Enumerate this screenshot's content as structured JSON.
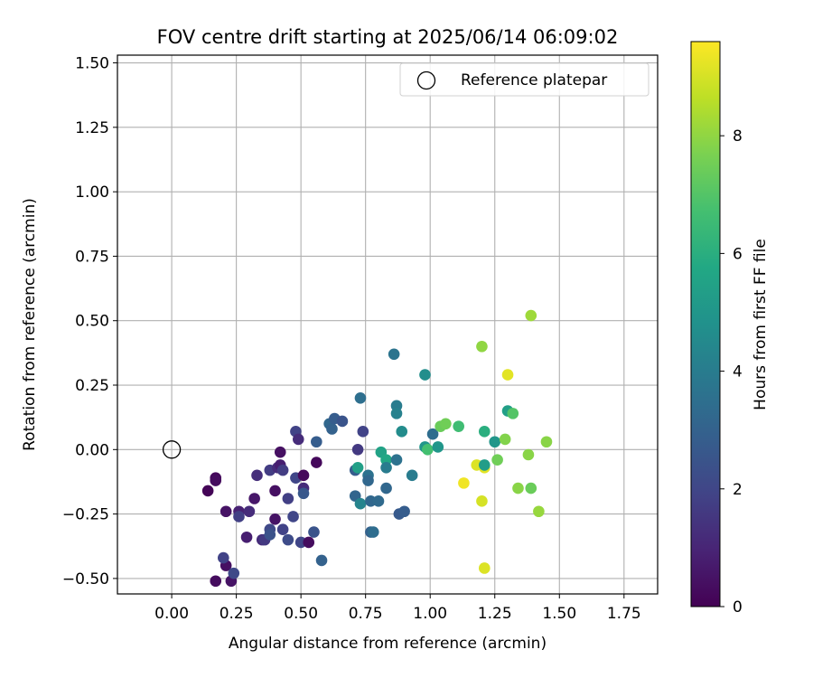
{
  "chart_data": {
    "type": "scatter",
    "title": "FOV centre drift starting at 2025/06/14 06:09:02",
    "xlabel": "Angular distance from reference (arcmin)",
    "ylabel": "Rotation from reference (arcmin)",
    "xlim": [
      -0.21,
      1.88
    ],
    "ylim": [
      -0.56,
      1.53
    ],
    "xticks": [
      "0.00",
      "0.25",
      "0.50",
      "0.75",
      "1.00",
      "1.25",
      "1.50",
      "1.75"
    ],
    "xtick_values": [
      0,
      0.25,
      0.5,
      0.75,
      1.0,
      1.25,
      1.5,
      1.75
    ],
    "yticks": [
      "−0.50",
      "−0.25",
      "0.00",
      "0.25",
      "0.50",
      "0.75",
      "1.00",
      "1.25",
      "1.50"
    ],
    "ytick_values": [
      -0.5,
      -0.25,
      0,
      0.25,
      0.5,
      0.75,
      1.0,
      1.25,
      1.5
    ],
    "grid": true,
    "colormap": "viridis",
    "colorbar": {
      "label": "Hours from first FF file",
      "min": 0,
      "max": 9.6,
      "ticks": [
        "0",
        "2",
        "4",
        "6",
        "8"
      ],
      "tick_values": [
        0,
        2,
        4,
        6,
        8
      ]
    },
    "legend": {
      "position": "top-right",
      "entries": [
        {
          "label": "Reference platepar",
          "marker": "open-circle"
        }
      ]
    },
    "reference_point": {
      "x": 0.0,
      "y": 0.0
    },
    "points": [
      {
        "x": 0.14,
        "y": -0.16,
        "c": 0.1
      },
      {
        "x": 0.17,
        "y": -0.11,
        "c": 0.2
      },
      {
        "x": 0.17,
        "y": -0.12,
        "c": 0.3
      },
      {
        "x": 0.17,
        "y": -0.51,
        "c": 0.3
      },
      {
        "x": 0.21,
        "y": -0.45,
        "c": 0.4
      },
      {
        "x": 0.23,
        "y": -0.51,
        "c": 0.5
      },
      {
        "x": 0.21,
        "y": -0.24,
        "c": 0.5
      },
      {
        "x": 0.26,
        "y": -0.24,
        "c": 0.9
      },
      {
        "x": 0.26,
        "y": -0.26,
        "c": 1.8
      },
      {
        "x": 0.24,
        "y": -0.48,
        "c": 2.1
      },
      {
        "x": 0.2,
        "y": -0.42,
        "c": 1.9
      },
      {
        "x": 0.29,
        "y": -0.34,
        "c": 0.8
      },
      {
        "x": 0.3,
        "y": -0.24,
        "c": 1.2
      },
      {
        "x": 0.32,
        "y": -0.19,
        "c": 0.6
      },
      {
        "x": 0.33,
        "y": -0.1,
        "c": 1.3
      },
      {
        "x": 0.35,
        "y": -0.35,
        "c": 1.2
      },
      {
        "x": 0.36,
        "y": -0.35,
        "c": 1.6
      },
      {
        "x": 0.38,
        "y": -0.31,
        "c": 2.1
      },
      {
        "x": 0.38,
        "y": -0.33,
        "c": 2.4
      },
      {
        "x": 0.38,
        "y": -0.08,
        "c": 1.7
      },
      {
        "x": 0.4,
        "y": -0.27,
        "c": 0.5
      },
      {
        "x": 0.4,
        "y": -0.16,
        "c": 0.4
      },
      {
        "x": 0.41,
        "y": -0.07,
        "c": 1.2
      },
      {
        "x": 0.42,
        "y": -0.01,
        "c": 0.4
      },
      {
        "x": 0.42,
        "y": -0.06,
        "c": 0.8
      },
      {
        "x": 0.43,
        "y": -0.08,
        "c": 1.7
      },
      {
        "x": 0.43,
        "y": -0.31,
        "c": 1.9
      },
      {
        "x": 0.45,
        "y": -0.19,
        "c": 1.8
      },
      {
        "x": 0.45,
        "y": -0.35,
        "c": 2.2
      },
      {
        "x": 0.47,
        "y": -0.26,
        "c": 2.0
      },
      {
        "x": 0.48,
        "y": -0.11,
        "c": 2.0
      },
      {
        "x": 0.48,
        "y": 0.07,
        "c": 1.9
      },
      {
        "x": 0.49,
        "y": 0.04,
        "c": 1.2
      },
      {
        "x": 0.5,
        "y": -0.36,
        "c": 2.0
      },
      {
        "x": 0.51,
        "y": -0.1,
        "c": 0.2
      },
      {
        "x": 0.51,
        "y": -0.15,
        "c": 1.2
      },
      {
        "x": 0.51,
        "y": -0.17,
        "c": 2.6
      },
      {
        "x": 0.53,
        "y": -0.36,
        "c": 0.3
      },
      {
        "x": 0.55,
        "y": -0.32,
        "c": 2.5
      },
      {
        "x": 0.56,
        "y": 0.03,
        "c": 2.8
      },
      {
        "x": 0.56,
        "y": -0.05,
        "c": 0.2
      },
      {
        "x": 0.58,
        "y": -0.43,
        "c": 3.0
      },
      {
        "x": 0.61,
        "y": 0.1,
        "c": 3.2
      },
      {
        "x": 0.62,
        "y": 0.08,
        "c": 3.0
      },
      {
        "x": 0.63,
        "y": 0.12,
        "c": 2.8
      },
      {
        "x": 0.66,
        "y": 0.11,
        "c": 2.5
      },
      {
        "x": 0.71,
        "y": -0.08,
        "c": 2.8
      },
      {
        "x": 0.71,
        "y": -0.18,
        "c": 3.1
      },
      {
        "x": 0.72,
        "y": 0.0,
        "c": 1.6
      },
      {
        "x": 0.73,
        "y": 0.2,
        "c": 3.5
      },
      {
        "x": 0.74,
        "y": 0.07,
        "c": 1.9
      },
      {
        "x": 0.72,
        "y": -0.07,
        "c": 5.4
      },
      {
        "x": 0.73,
        "y": -0.21,
        "c": 4.3
      },
      {
        "x": 0.76,
        "y": -0.1,
        "c": 3.6
      },
      {
        "x": 0.76,
        "y": -0.12,
        "c": 3.2
      },
      {
        "x": 0.77,
        "y": -0.2,
        "c": 3.2
      },
      {
        "x": 0.77,
        "y": -0.32,
        "c": 3.0
      },
      {
        "x": 0.78,
        "y": -0.32,
        "c": 3.4
      },
      {
        "x": 0.8,
        "y": -0.2,
        "c": 3.3
      },
      {
        "x": 0.81,
        "y": -0.01,
        "c": 5.5
      },
      {
        "x": 0.83,
        "y": -0.04,
        "c": 5.7
      },
      {
        "x": 0.83,
        "y": -0.07,
        "c": 4.0
      },
      {
        "x": 0.83,
        "y": -0.15,
        "c": 3.2
      },
      {
        "x": 0.86,
        "y": 0.37,
        "c": 3.7
      },
      {
        "x": 0.87,
        "y": 0.17,
        "c": 4.0
      },
      {
        "x": 0.87,
        "y": 0.14,
        "c": 4.2
      },
      {
        "x": 0.87,
        "y": -0.04,
        "c": 3.6
      },
      {
        "x": 0.88,
        "y": -0.25,
        "c": 2.7
      },
      {
        "x": 0.89,
        "y": 0.07,
        "c": 4.6
      },
      {
        "x": 0.9,
        "y": -0.24,
        "c": 2.8
      },
      {
        "x": 0.93,
        "y": -0.1,
        "c": 4.0
      },
      {
        "x": 0.98,
        "y": 0.29,
        "c": 4.7
      },
      {
        "x": 0.98,
        "y": 0.01,
        "c": 5.0
      },
      {
        "x": 0.99,
        "y": 0.0,
        "c": 6.7
      },
      {
        "x": 1.01,
        "y": 0.06,
        "c": 3.4
      },
      {
        "x": 1.03,
        "y": 0.01,
        "c": 5.0
      },
      {
        "x": 1.04,
        "y": 0.09,
        "c": 7.4
      },
      {
        "x": 1.06,
        "y": 0.1,
        "c": 7.5
      },
      {
        "x": 1.11,
        "y": 0.09,
        "c": 6.6
      },
      {
        "x": 1.13,
        "y": -0.13,
        "c": 9.4
      },
      {
        "x": 1.18,
        "y": -0.06,
        "c": 9.1
      },
      {
        "x": 1.2,
        "y": 0.4,
        "c": 8.0
      },
      {
        "x": 1.2,
        "y": -0.2,
        "c": 9.0
      },
      {
        "x": 1.21,
        "y": -0.07,
        "c": 9.2
      },
      {
        "x": 1.21,
        "y": -0.06,
        "c": 5.3
      },
      {
        "x": 1.21,
        "y": 0.07,
        "c": 6.0
      },
      {
        "x": 1.21,
        "y": -0.46,
        "c": 9.1
      },
      {
        "x": 1.25,
        "y": 0.03,
        "c": 5.0
      },
      {
        "x": 1.26,
        "y": -0.04,
        "c": 7.5
      },
      {
        "x": 1.29,
        "y": 0.04,
        "c": 7.8
      },
      {
        "x": 1.3,
        "y": 0.29,
        "c": 9.2
      },
      {
        "x": 1.3,
        "y": 0.15,
        "c": 5.4
      },
      {
        "x": 1.32,
        "y": 0.14,
        "c": 7.0
      },
      {
        "x": 1.34,
        "y": -0.15,
        "c": 7.9
      },
      {
        "x": 1.38,
        "y": -0.02,
        "c": 7.9
      },
      {
        "x": 1.39,
        "y": 0.52,
        "c": 8.2
      },
      {
        "x": 1.39,
        "y": -0.15,
        "c": 7.4
      },
      {
        "x": 1.42,
        "y": -0.24,
        "c": 8.1
      },
      {
        "x": 1.45,
        "y": 0.03,
        "c": 7.9
      }
    ]
  }
}
